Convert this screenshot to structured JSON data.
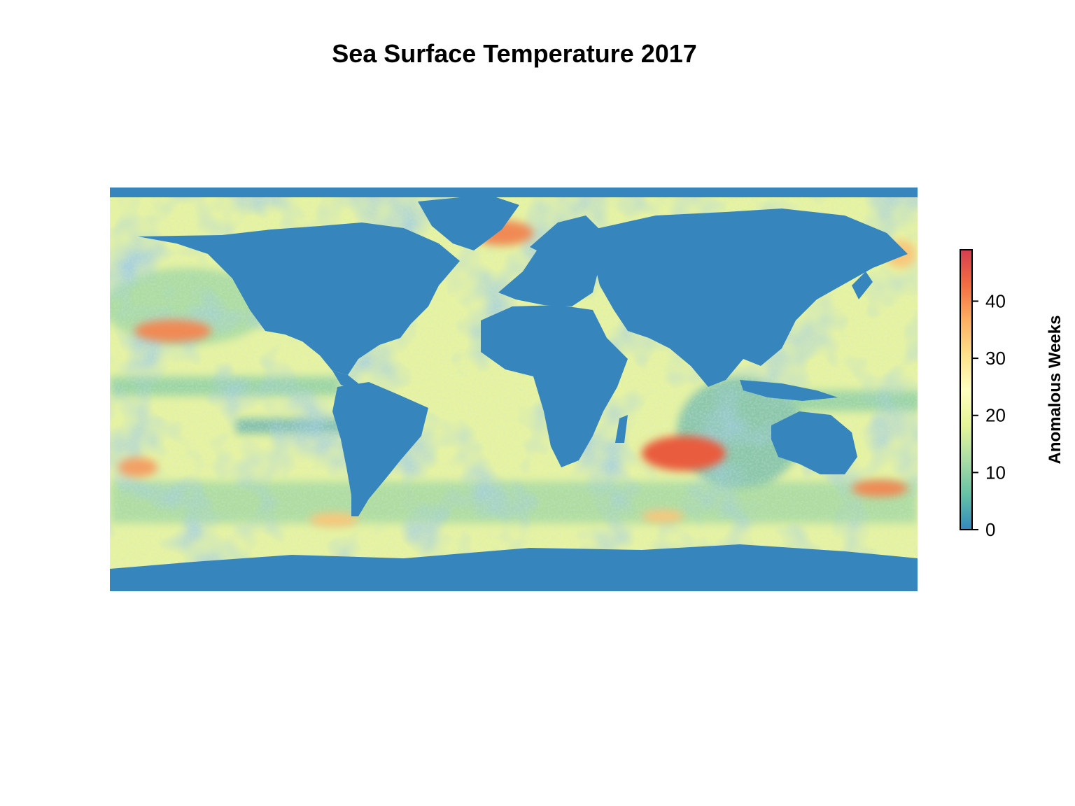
{
  "title": "Sea Surface Temperature 2017",
  "legend": {
    "label": "Anomalous Weeks",
    "ticks": [
      0,
      10,
      20,
      30,
      40
    ],
    "range": [
      0,
      49
    ],
    "colors": [
      "#3288bd",
      "#66c2a5",
      "#abdda4",
      "#e6f598",
      "#ffffbf",
      "#fee08b",
      "#fdae61",
      "#f46d43",
      "#d53e4f"
    ]
  },
  "map": {
    "land_color": "#3686bd",
    "ocean_pattern": "speckled anomaly field, mostly 10-30 weeks, hot spots near 40+ weeks"
  }
}
